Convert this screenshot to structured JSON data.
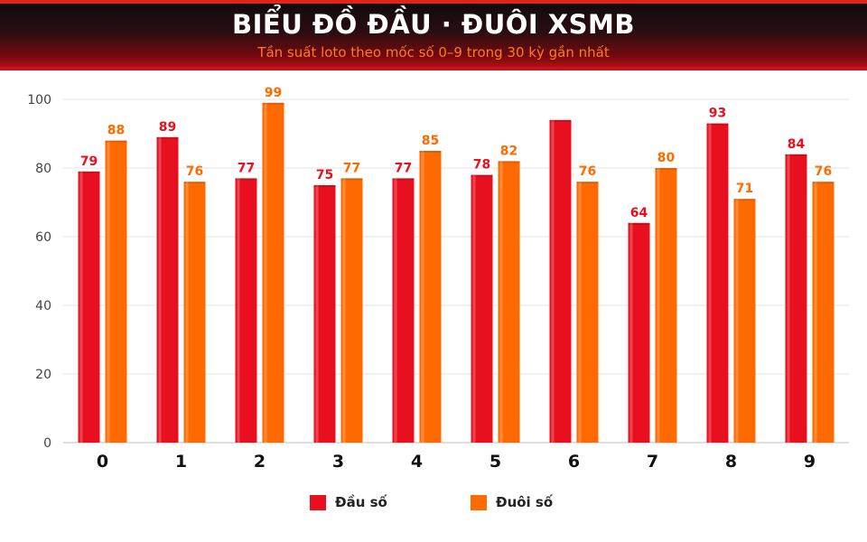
{
  "header": {
    "title": "BIỂU ĐỒ ĐẦU · ĐUÔI XSMB",
    "subtitle": "Tần suất loto theo mốc số 0–9 trong 30 kỳ gần nhất"
  },
  "colors": {
    "dau": "#e8101e",
    "duoi": "#ff6a00",
    "title": "#ffffff",
    "subtitle": "#ff7a1a",
    "grid": "#e3e3e3"
  },
  "chart_data": {
    "type": "bar",
    "categories": [
      "0",
      "1",
      "2",
      "3",
      "4",
      "5",
      "6",
      "7",
      "8",
      "9"
    ],
    "series": [
      {
        "name": "Đầu số",
        "values": [
          79,
          89,
          77,
          75,
          77,
          78,
          94,
          64,
          93,
          84
        ],
        "labels": [
          "79",
          "89",
          "77",
          "75",
          "77",
          "78",
          "",
          "64",
          "93",
          "84"
        ]
      },
      {
        "name": "Đuôi số",
        "values": [
          88,
          76,
          99,
          77,
          85,
          82,
          76,
          80,
          71,
          76
        ],
        "labels": [
          "88",
          "76",
          "99",
          "77",
          "85",
          "82",
          "76",
          "80",
          "71",
          "76"
        ]
      }
    ],
    "yticks": [
      "0",
      "20",
      "40",
      "60",
      "80",
      "100"
    ],
    "ylim": [
      0,
      100
    ],
    "grid": true,
    "legend_position": "bottom-center"
  }
}
